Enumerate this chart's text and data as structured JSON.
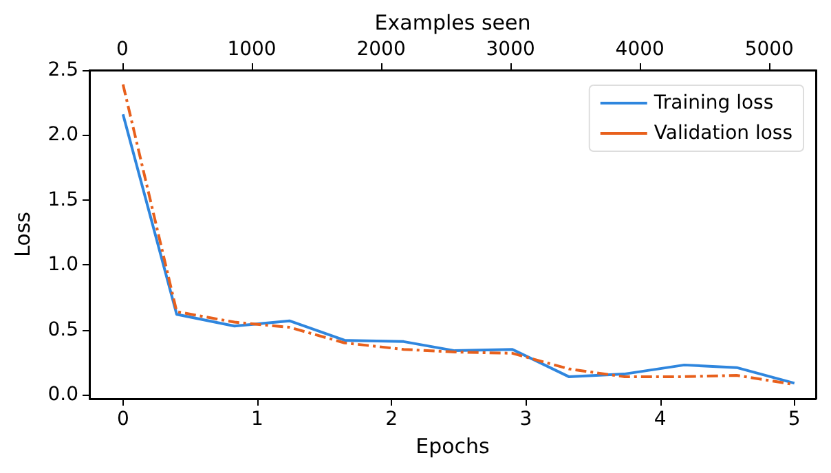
{
  "chart_data": {
    "type": "line",
    "xlabel": "Epochs",
    "ylabel": "Loss",
    "x2label": "Examples seen",
    "x": [
      0,
      0.4,
      0.83,
      1.24,
      1.65,
      2.09,
      2.47,
      2.9,
      3.32,
      3.73,
      4.18,
      4.57,
      5.0
    ],
    "series": [
      {
        "name": "Training loss",
        "color": "#2f86de",
        "line_style": "solid",
        "values": [
          2.16,
          0.62,
          0.53,
          0.57,
          0.42,
          0.41,
          0.34,
          0.35,
          0.14,
          0.16,
          0.23,
          0.21,
          0.09
        ]
      },
      {
        "name": "Validation loss",
        "color": "#e8601c",
        "line_style": "dashed",
        "values": [
          2.39,
          0.64,
          0.56,
          0.52,
          0.4,
          0.35,
          0.33,
          0.32,
          0.2,
          0.14,
          0.14,
          0.15,
          0.08
        ]
      }
    ],
    "xlim": [
      -0.25,
      5.16
    ],
    "xticks": [
      0,
      1,
      2,
      3,
      4,
      5
    ],
    "x2lim": [
      -255,
      5360
    ],
    "x2ticks": [
      0,
      1000,
      2000,
      3000,
      4000,
      5000
    ],
    "ylim": [
      -0.03,
      2.5
    ],
    "yticks": [
      {
        "value": 0,
        "label": "0.0"
      },
      0.5,
      {
        "value": 1,
        "label": "1.0"
      },
      1.5,
      {
        "value": 2,
        "label": "2.0"
      },
      2.5
    ],
    "legend": "top right",
    "grid": false,
    "marker": "none"
  }
}
